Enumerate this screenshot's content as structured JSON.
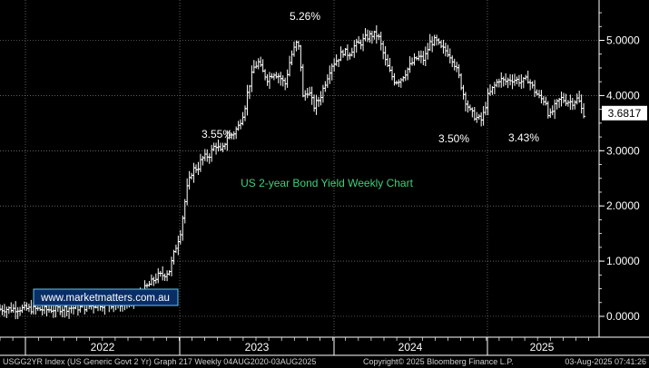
{
  "chart_data": {
    "type": "ohlc-bar",
    "title": "US 2-year Bond Yield Weekly Chart",
    "watermark": "www.marketmatters.com.au",
    "y_axis": {
      "ticks": [
        "0.0000",
        "1.0000",
        "2.0000",
        "3.0000",
        "4.0000",
        "5.0000"
      ],
      "tick_values": [
        0,
        1,
        2,
        3,
        4,
        5
      ],
      "range": [
        -0.05,
        5.7
      ],
      "side": "right"
    },
    "x_axis": {
      "labels": [
        "2022",
        "2023",
        "2024",
        "2025"
      ],
      "range": [
        2020.59,
        2025.62
      ]
    },
    "last_value": 3.6817,
    "last_value_label": "3.6817",
    "annotations": [
      {
        "label": "5.26%",
        "x": 2023.2,
        "y": 5.26,
        "position": "above"
      },
      {
        "label": "3.55%",
        "x": 2022.36,
        "y": 3.55,
        "position": "below"
      },
      {
        "label": "3.50%",
        "x": 2024.6,
        "y": 3.5,
        "position": "below"
      },
      {
        "label": "3.43%",
        "x": 2025.02,
        "y": 3.43,
        "position": "below"
      }
    ],
    "series": [
      {
        "close_points": [
          [
            2020.59,
            0.13
          ],
          [
            2020.75,
            0.14
          ],
          [
            2020.9,
            0.13
          ],
          [
            2021.0,
            0.12
          ],
          [
            2021.15,
            0.15
          ],
          [
            2021.3,
            0.16
          ],
          [
            2021.45,
            0.22
          ],
          [
            2021.6,
            0.22
          ],
          [
            2021.75,
            0.28
          ],
          [
            2021.85,
            0.52
          ],
          [
            2021.95,
            0.73
          ],
          [
            2022.0,
            0.75
          ],
          [
            2022.05,
            0.82
          ],
          [
            2022.1,
            1.2
          ],
          [
            2022.15,
            1.55
          ],
          [
            2022.2,
            2.28
          ],
          [
            2022.25,
            2.65
          ],
          [
            2022.3,
            2.7
          ],
          [
            2022.33,
            2.85
          ],
          [
            2022.4,
            2.93
          ],
          [
            2022.45,
            3.12
          ],
          [
            2022.5,
            2.96
          ],
          [
            2022.55,
            3.25
          ],
          [
            2022.6,
            3.3
          ],
          [
            2022.65,
            3.45
          ],
          [
            2022.7,
            3.75
          ],
          [
            2022.73,
            4.1
          ],
          [
            2022.78,
            4.5
          ],
          [
            2022.82,
            4.6
          ],
          [
            2022.85,
            4.45
          ],
          [
            2022.9,
            4.3
          ],
          [
            2022.95,
            4.42
          ],
          [
            2023.0,
            4.35
          ],
          [
            2023.05,
            4.2
          ],
          [
            2023.1,
            4.7
          ],
          [
            2023.15,
            4.95
          ],
          [
            2023.18,
            4.8
          ],
          [
            2023.2,
            3.95
          ],
          [
            2023.25,
            4.1
          ],
          [
            2023.3,
            3.8
          ],
          [
            2023.35,
            3.95
          ],
          [
            2023.4,
            4.25
          ],
          [
            2023.45,
            4.55
          ],
          [
            2023.5,
            4.65
          ],
          [
            2023.55,
            4.8
          ],
          [
            2023.6,
            4.75
          ],
          [
            2023.65,
            4.9
          ],
          [
            2023.7,
            4.95
          ],
          [
            2023.75,
            5.05
          ],
          [
            2023.8,
            5.1
          ],
          [
            2023.85,
            5.1
          ],
          [
            2023.88,
            4.9
          ],
          [
            2023.92,
            4.6
          ],
          [
            2023.96,
            4.4
          ],
          [
            2024.0,
            4.25
          ],
          [
            2024.05,
            4.3
          ],
          [
            2024.1,
            4.45
          ],
          [
            2024.15,
            4.6
          ],
          [
            2024.2,
            4.7
          ],
          [
            2024.25,
            4.65
          ],
          [
            2024.3,
            4.95
          ],
          [
            2024.35,
            5.0
          ],
          [
            2024.4,
            4.85
          ],
          [
            2024.45,
            4.8
          ],
          [
            2024.5,
            4.65
          ],
          [
            2024.55,
            4.35
          ],
          [
            2024.6,
            3.95
          ],
          [
            2024.65,
            3.7
          ],
          [
            2024.7,
            3.6
          ],
          [
            2024.75,
            3.55
          ],
          [
            2024.8,
            3.98
          ],
          [
            2024.85,
            4.15
          ],
          [
            2024.9,
            4.3
          ],
          [
            2024.95,
            4.25
          ],
          [
            2025.0,
            4.3
          ],
          [
            2025.05,
            4.28
          ],
          [
            2025.1,
            4.25
          ],
          [
            2025.15,
            4.3
          ],
          [
            2025.2,
            4.1
          ],
          [
            2025.25,
            3.95
          ],
          [
            2025.3,
            3.9
          ],
          [
            2025.33,
            3.6
          ],
          [
            2025.38,
            3.8
          ],
          [
            2025.43,
            3.95
          ],
          [
            2025.48,
            3.9
          ],
          [
            2025.53,
            3.88
          ],
          [
            2025.58,
            3.95
          ],
          [
            2025.62,
            3.68
          ]
        ]
      }
    ]
  },
  "footer": {
    "left": "USGG2YR Index (US Generic Govt 2 Yr) Graph 217  Weekly 04AUG2020-03AUG2025",
    "center": "Copyright© 2025 Bloomberg Finance L.P.",
    "right": "03-Aug-2025 07:41:26"
  },
  "colors": {
    "background": "#000000",
    "bars": "#ffffff",
    "grid": "#9a9a9a",
    "title": "#3dd07a",
    "watermark_text": "#ffffff",
    "watermark_bg": "#0a2d66",
    "watermark_border": "#5bc8f0",
    "last_value_bg": "#ffffff",
    "last_value_text": "#000000"
  }
}
